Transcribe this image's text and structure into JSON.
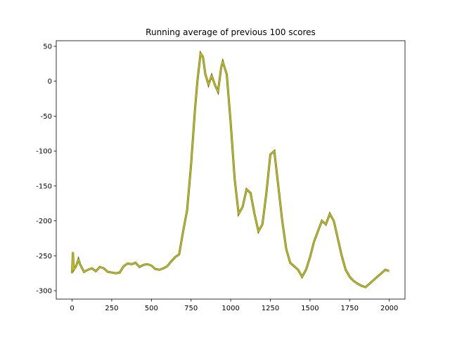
{
  "chart_data": {
    "type": "line",
    "title": "Running average of previous 100 scores",
    "x": [
      0,
      5,
      10,
      25,
      40,
      50,
      75,
      100,
      125,
      150,
      175,
      200,
      225,
      250,
      275,
      300,
      325,
      350,
      375,
      400,
      425,
      450,
      475,
      500,
      525,
      550,
      575,
      600,
      625,
      650,
      675,
      700,
      725,
      750,
      775,
      790,
      810,
      825,
      840,
      860,
      880,
      900,
      920,
      940,
      950,
      975,
      1000,
      1025,
      1050,
      1075,
      1100,
      1125,
      1150,
      1175,
      1200,
      1225,
      1250,
      1275,
      1300,
      1325,
      1350,
      1375,
      1400,
      1425,
      1450,
      1475,
      1500,
      1525,
      1550,
      1575,
      1600,
      1625,
      1650,
      1675,
      1700,
      1725,
      1750,
      1775,
      1800,
      1825,
      1850,
      1875,
      1900,
      1925,
      1950,
      1975,
      1999
    ],
    "series": [
      {
        "name": "running average",
        "color": "#bcbd22",
        "values": [
          -275,
          -245,
          -270,
          -265,
          -255,
          -262,
          -273,
          -270,
          -268,
          -272,
          -266,
          -268,
          -273,
          -274,
          -275,
          -274,
          -265,
          -261,
          -262,
          -260,
          -266,
          -263,
          -262,
          -264,
          -269,
          -270,
          -268,
          -265,
          -258,
          -252,
          -248,
          -215,
          -185,
          -120,
          -40,
          0,
          40,
          35,
          10,
          -5,
          8,
          -5,
          -15,
          20,
          28,
          10,
          -60,
          -140,
          -190,
          -180,
          -155,
          -160,
          -190,
          -215,
          -205,
          -160,
          -105,
          -100,
          -150,
          -200,
          -240,
          -260,
          -265,
          -270,
          -280,
          -270,
          -252,
          -230,
          -215,
          -200,
          -205,
          -190,
          -200,
          -225,
          -250,
          -270,
          -280,
          -286,
          -290,
          -293,
          -295,
          -290,
          -285,
          -280,
          -275,
          -270,
          -272
        ]
      }
    ],
    "xlim": [
      -99.95,
      2098.95
    ],
    "ylim": [
      -312,
      58
    ],
    "xticks": [
      0,
      250,
      500,
      750,
      1000,
      1250,
      1500,
      1750,
      2000
    ],
    "yticks": [
      -300,
      -250,
      -200,
      -150,
      -100,
      -50,
      0,
      50
    ],
    "grid": false
  }
}
